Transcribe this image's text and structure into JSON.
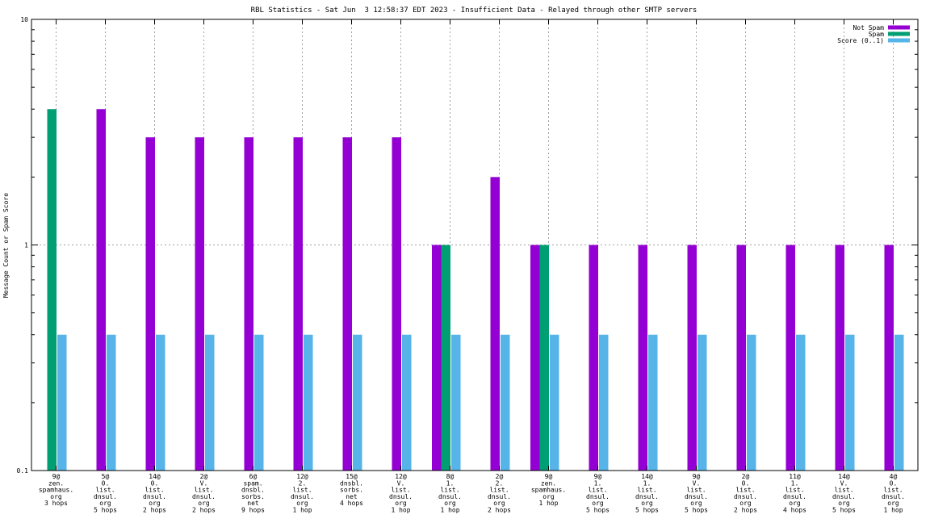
{
  "chart_data": {
    "type": "bar",
    "title": "RBL Statistics - Sat Jun  3 12:58:37 EDT 2023 - Insufficient Data - Relayed through other SMTP servers",
    "ylabel": "Message Count or Spam Score",
    "xlabel": "",
    "y_scale": "log",
    "ylim": [
      0.1,
      10
    ],
    "y_ticks": [
      "0.1",
      "1",
      "10"
    ],
    "grid": true,
    "legend_position": "top-right",
    "categories": [
      [
        "9@",
        "zen.",
        "spamhaus.",
        "org",
        "3 hops"
      ],
      [
        "5@",
        "0.",
        "list.",
        "dnsul.",
        "org",
        "5 hops"
      ],
      [
        "14@",
        "0.",
        "list.",
        "dnsul.",
        "org",
        "2 hops"
      ],
      [
        "2@",
        "V.",
        "list.",
        "dnsul.",
        "org",
        "2 hops"
      ],
      [
        "6@",
        "spam.",
        "dnsbl.",
        "sorbs.",
        "net",
        "9 hops"
      ],
      [
        "12@",
        "2.",
        "list.",
        "dnsul.",
        "org",
        "1 hop"
      ],
      [
        "15@",
        "dnsbl.",
        "sorbs.",
        "net",
        "4 hops"
      ],
      [
        "12@",
        "V.",
        "list.",
        "dnsul.",
        "org",
        "1 hop"
      ],
      [
        "8@",
        "1.",
        "list.",
        "dnsul.",
        "org",
        "1 hop"
      ],
      [
        "2@",
        "2.",
        "list.",
        "dnsul.",
        "org",
        "2 hops"
      ],
      [
        "9@",
        "zen.",
        "spamhaus.",
        "org",
        "1 hop"
      ],
      [
        "9@",
        "1.",
        "list.",
        "dnsul.",
        "org",
        "5 hops"
      ],
      [
        "14@",
        "1.",
        "list.",
        "dnsul.",
        "org",
        "5 hops"
      ],
      [
        "9@",
        "V.",
        "list.",
        "dnsul.",
        "org",
        "5 hops"
      ],
      [
        "2@",
        "0.",
        "list.",
        "dnsul.",
        "org",
        "2 hops"
      ],
      [
        "11@",
        "1.",
        "list.",
        "dnsul.",
        "org",
        "4 hops"
      ],
      [
        "14@",
        "V.",
        "list.",
        "dnsul.",
        "org",
        "5 hops"
      ],
      [
        "4@",
        "0.",
        "list.",
        "dnsul.",
        "org",
        "1 hop"
      ]
    ],
    "series": [
      {
        "name": "Not Spam",
        "color": "#9400d3",
        "values": [
          null,
          4,
          3,
          3,
          3,
          3,
          3,
          3,
          1,
          2,
          1,
          1,
          1,
          1,
          1,
          1,
          1,
          1
        ]
      },
      {
        "name": "Spam",
        "color": "#009e73",
        "values": [
          4,
          null,
          null,
          null,
          null,
          null,
          null,
          null,
          1,
          null,
          1,
          null,
          null,
          null,
          null,
          null,
          null,
          null
        ]
      },
      {
        "name": "Score (0..1)",
        "color": "#56b4e9",
        "values": [
          0.4,
          0.4,
          0.4,
          0.4,
          0.4,
          0.4,
          0.4,
          0.4,
          0.4,
          0.4,
          0.4,
          0.4,
          0.4,
          0.4,
          0.4,
          0.4,
          0.4,
          0.4
        ]
      }
    ]
  }
}
